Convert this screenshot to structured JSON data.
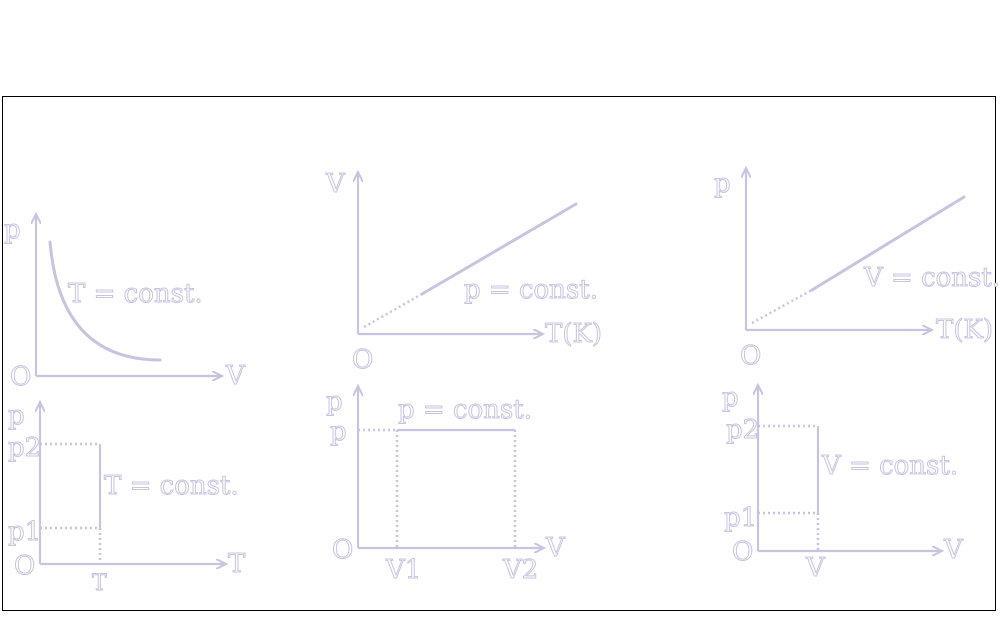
{
  "diagrams": {
    "isothermal_pv": {
      "y_axis": "p",
      "x_axis": "V",
      "origin": "O",
      "curve_label": "T = const."
    },
    "isobaric_vt": {
      "y_axis": "V",
      "x_axis": "T(K)",
      "origin": "O",
      "curve_label": "p = const."
    },
    "isochoric_pt": {
      "y_axis": "p",
      "x_axis": "T(K)",
      "origin": "O",
      "curve_label": "V = const."
    },
    "isothermal_pt": {
      "y_axis": "p",
      "x_axis": "T",
      "origin": "O",
      "curve_label": "T = const.",
      "p2": "p2",
      "p1": "p1",
      "t_tick": "T"
    },
    "isobaric_pv": {
      "y_axis": "p",
      "x_axis": "V",
      "origin": "O",
      "curve_label": "p = const.",
      "p_tick": "p",
      "v1": "V1",
      "v2": "V2"
    },
    "isochoric_pv": {
      "y_axis": "p",
      "x_axis": "V",
      "origin": "O",
      "curve_label": "V = const.",
      "p2": "p2",
      "p1": "p1",
      "v_tick": "V"
    }
  },
  "colors": {
    "stroke": "#c8c4e0",
    "fill": "#ffffff",
    "frame": "#000000"
  }
}
